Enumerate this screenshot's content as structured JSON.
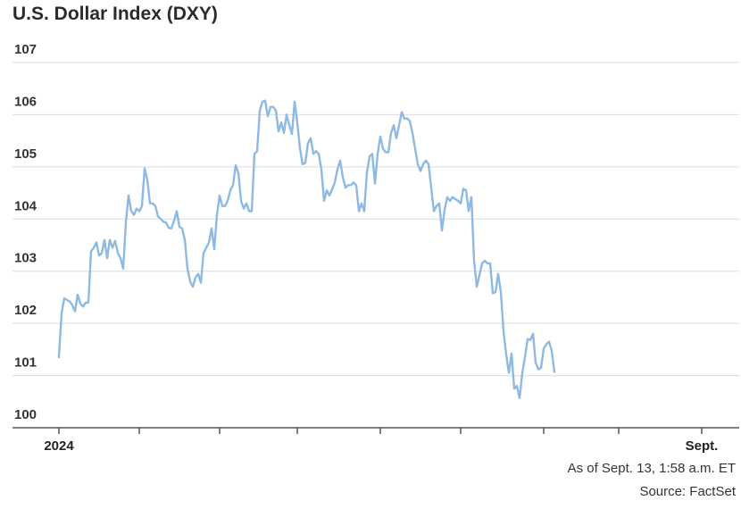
{
  "chart_data": {
    "type": "line",
    "title": "U.S. Dollar Index (DXY)",
    "ylim": [
      100,
      107
    ],
    "yticks": [
      100,
      101,
      102,
      103,
      104,
      105,
      106,
      107
    ],
    "x_range": [
      0,
      253
    ],
    "x_tick_labels": [
      {
        "x": 0,
        "label": "2024"
      },
      {
        "x": 240,
        "label": "Sept."
      }
    ],
    "x_minor_ticks": [
      30,
      60,
      89,
      120,
      150,
      181,
      209,
      240
    ],
    "grid": true,
    "series": [
      {
        "color": "#8db9e3",
        "points": [
          [
            0,
            101.35
          ],
          [
            1,
            102.2
          ],
          [
            2,
            102.48
          ],
          [
            4,
            102.42
          ],
          [
            5,
            102.35
          ],
          [
            6,
            102.23
          ],
          [
            7,
            102.55
          ],
          [
            8,
            102.38
          ],
          [
            9,
            102.32
          ],
          [
            10,
            102.4
          ],
          [
            11,
            102.4
          ],
          [
            12,
            103.38
          ],
          [
            13,
            103.45
          ],
          [
            14,
            103.55
          ],
          [
            15,
            103.3
          ],
          [
            16,
            103.35
          ],
          [
            17,
            103.6
          ],
          [
            18,
            103.25
          ],
          [
            19,
            103.6
          ],
          [
            20,
            103.45
          ],
          [
            21,
            103.58
          ],
          [
            22,
            103.35
          ],
          [
            23,
            103.25
          ],
          [
            24,
            103.05
          ],
          [
            25,
            103.95
          ],
          [
            26,
            104.45
          ],
          [
            27,
            104.15
          ],
          [
            28,
            104.08
          ],
          [
            29,
            104.2
          ],
          [
            30,
            104.15
          ],
          [
            31,
            104.25
          ],
          [
            32,
            104.97
          ],
          [
            33,
            104.75
          ],
          [
            34,
            104.3
          ],
          [
            35,
            104.3
          ],
          [
            36,
            104.25
          ],
          [
            37,
            104.05
          ],
          [
            38,
            104.0
          ],
          [
            39,
            103.95
          ],
          [
            40,
            103.93
          ],
          [
            41,
            103.83
          ],
          [
            42,
            103.82
          ],
          [
            43,
            103.97
          ],
          [
            44,
            104.15
          ],
          [
            45,
            103.85
          ],
          [
            46,
            103.82
          ],
          [
            47,
            103.6
          ],
          [
            48,
            103.05
          ],
          [
            49,
            102.8
          ],
          [
            50,
            102.7
          ],
          [
            51,
            102.88
          ],
          [
            52,
            102.95
          ],
          [
            53,
            102.78
          ],
          [
            54,
            103.35
          ],
          [
            55,
            103.45
          ],
          [
            56,
            103.55
          ],
          [
            57,
            103.82
          ],
          [
            58,
            103.42
          ],
          [
            59,
            104.08
          ],
          [
            60,
            104.45
          ],
          [
            61,
            104.25
          ],
          [
            62,
            104.25
          ],
          [
            63,
            104.35
          ],
          [
            64,
            104.55
          ],
          [
            65,
            104.65
          ],
          [
            66,
            105.03
          ],
          [
            67,
            104.88
          ],
          [
            68,
            104.35
          ],
          [
            69,
            104.2
          ],
          [
            70,
            104.3
          ],
          [
            71,
            104.15
          ],
          [
            72,
            104.15
          ],
          [
            73,
            105.25
          ],
          [
            74,
            105.3
          ],
          [
            75,
            106.08
          ],
          [
            76,
            106.25
          ],
          [
            77,
            106.27
          ],
          [
            78,
            105.97
          ],
          [
            79,
            106.15
          ],
          [
            80,
            106.15
          ],
          [
            81,
            106.08
          ],
          [
            82,
            105.68
          ],
          [
            83,
            105.85
          ],
          [
            84,
            105.65
          ],
          [
            85,
            106.0
          ],
          [
            86,
            105.8
          ],
          [
            87,
            105.63
          ],
          [
            88,
            106.25
          ],
          [
            89,
            105.85
          ],
          [
            90,
            105.35
          ],
          [
            91,
            105.05
          ],
          [
            92,
            105.08
          ],
          [
            93,
            105.45
          ],
          [
            94,
            105.55
          ],
          [
            95,
            105.25
          ],
          [
            96,
            105.3
          ],
          [
            97,
            105.25
          ],
          [
            98,
            104.95
          ],
          [
            99,
            104.35
          ],
          [
            100,
            104.55
          ],
          [
            101,
            104.45
          ],
          [
            102,
            104.57
          ],
          [
            103,
            104.7
          ],
          [
            104,
            104.95
          ],
          [
            105,
            105.12
          ],
          [
            106,
            104.8
          ],
          [
            107,
            104.6
          ],
          [
            108,
            104.65
          ],
          [
            109,
            104.65
          ],
          [
            110,
            104.7
          ],
          [
            111,
            104.65
          ],
          [
            112,
            104.15
          ],
          [
            113,
            104.3
          ],
          [
            114,
            104.15
          ],
          [
            115,
            104.9
          ],
          [
            116,
            105.2
          ],
          [
            117,
            105.25
          ],
          [
            118,
            104.68
          ],
          [
            119,
            105.25
          ],
          [
            120,
            105.58
          ],
          [
            121,
            105.35
          ],
          [
            122,
            105.28
          ],
          [
            123,
            105.28
          ],
          [
            124,
            105.65
          ],
          [
            125,
            105.8
          ],
          [
            126,
            105.55
          ],
          [
            127,
            105.8
          ],
          [
            128,
            106.05
          ],
          [
            129,
            105.92
          ],
          [
            130,
            105.93
          ],
          [
            131,
            105.88
          ],
          [
            132,
            105.65
          ],
          [
            133,
            105.35
          ],
          [
            134,
            105.05
          ],
          [
            135,
            104.92
          ],
          [
            136,
            105.05
          ],
          [
            137,
            105.12
          ],
          [
            138,
            105.05
          ],
          [
            139,
            104.6
          ],
          [
            140,
            104.15
          ],
          [
            141,
            104.25
          ],
          [
            142,
            104.3
          ],
          [
            143,
            103.78
          ],
          [
            144,
            104.18
          ],
          [
            145,
            104.42
          ],
          [
            146,
            104.35
          ],
          [
            147,
            104.42
          ],
          [
            148,
            104.38
          ],
          [
            149,
            104.35
          ],
          [
            150,
            104.3
          ],
          [
            151,
            104.58
          ],
          [
            152,
            104.55
          ],
          [
            153,
            104.15
          ],
          [
            154,
            104.42
          ],
          [
            155,
            103.2
          ],
          [
            156,
            102.7
          ],
          [
            157,
            102.92
          ],
          [
            158,
            103.15
          ],
          [
            159,
            103.2
          ],
          [
            160,
            103.15
          ],
          [
            161,
            103.15
          ],
          [
            162,
            102.58
          ],
          [
            163,
            102.6
          ],
          [
            164,
            102.95
          ],
          [
            165,
            102.6
          ],
          [
            166,
            101.85
          ],
          [
            167,
            101.4
          ],
          [
            168,
            101.05
          ],
          [
            169,
            101.42
          ],
          [
            170,
            100.75
          ],
          [
            171,
            100.8
          ],
          [
            172,
            100.57
          ],
          [
            173,
            101.05
          ],
          [
            174,
            101.35
          ],
          [
            175,
            101.7
          ],
          [
            176,
            101.68
          ],
          [
            177,
            101.8
          ],
          [
            178,
            101.25
          ],
          [
            179,
            101.12
          ],
          [
            180,
            101.15
          ],
          [
            181,
            101.52
          ],
          [
            182,
            101.6
          ],
          [
            183,
            101.65
          ],
          [
            184,
            101.47
          ],
          [
            185,
            101.07
          ]
        ]
      }
    ],
    "source_notes": [
      "As of Sept. 13, 1:58 a.m. ET",
      "Source: FactSet"
    ]
  }
}
